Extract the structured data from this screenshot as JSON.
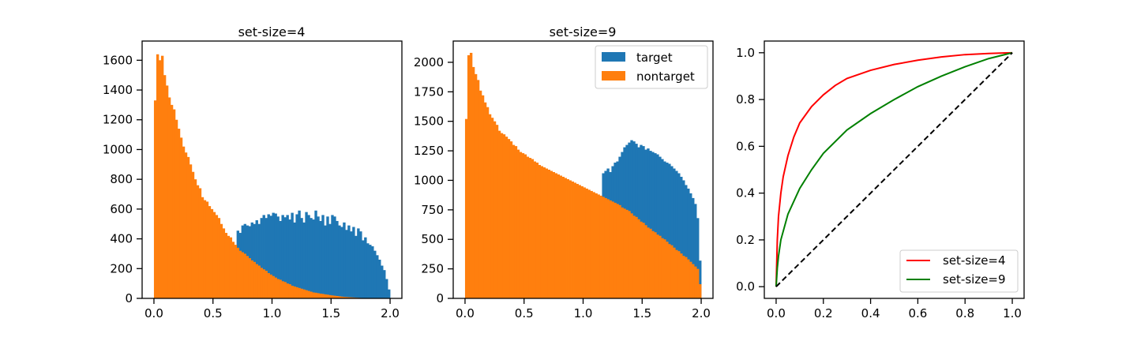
{
  "colors": {
    "target": "#1f77b4",
    "nontarget": "#ff7f0e",
    "roc_set4": "#ff0000",
    "roc_set9": "#008000",
    "diagonal": "#000000"
  },
  "chart_data": [
    {
      "type": "histogram",
      "title": "set-size=4",
      "xlabel": "",
      "ylabel": "",
      "xlim": [
        -0.1,
        2.1
      ],
      "ylim": [
        0,
        1729
      ],
      "xticks": [
        0.0,
        0.5,
        1.0,
        1.5,
        2.0
      ],
      "xticklabels": [
        "0.0",
        "0.5",
        "1.0",
        "1.5",
        "2.0"
      ],
      "yticks": [
        0,
        200,
        400,
        600,
        800,
        1000,
        1200,
        1400,
        1600
      ],
      "yticklabels": [
        "0",
        "200",
        "400",
        "600",
        "800",
        "1000",
        "1200",
        "1400",
        "1600"
      ],
      "bin_range": [
        0,
        2
      ],
      "bin_count": 100,
      "series": [
        {
          "name": "target",
          "color_key": "target",
          "values": [
            0,
            0,
            0,
            0,
            0,
            0,
            0,
            0,
            0,
            0,
            0,
            0,
            0,
            0,
            0,
            0,
            0,
            0,
            0,
            0,
            0,
            0,
            0,
            0,
            0,
            0,
            0,
            0,
            0,
            0,
            0,
            0,
            0,
            0,
            0,
            455,
            440,
            490,
            500,
            490,
            485,
            510,
            500,
            525,
            500,
            540,
            560,
            540,
            565,
            555,
            575,
            570,
            550,
            520,
            560,
            545,
            560,
            530,
            575,
            510,
            565,
            590,
            540,
            510,
            580,
            560,
            540,
            530,
            590,
            550,
            520,
            560,
            490,
            550,
            500,
            560,
            550,
            520,
            490,
            480,
            510,
            460,
            490,
            450,
            480,
            420,
            470,
            450,
            390,
            410,
            370,
            360,
            350,
            320,
            290,
            260,
            220,
            190,
            130,
            60
          ]
        },
        {
          "name": "nontarget",
          "color_key": "nontarget",
          "values": [
            1330,
            1640,
            1600,
            1630,
            1500,
            1430,
            1350,
            1300,
            1270,
            1200,
            1140,
            1080,
            1020,
            980,
            950,
            900,
            850,
            800,
            760,
            740,
            680,
            660,
            650,
            620,
            600,
            580,
            560,
            540,
            500,
            470,
            440,
            420,
            410,
            380,
            360,
            340,
            320,
            310,
            300,
            285,
            270,
            255,
            245,
            230,
            220,
            205,
            195,
            185,
            170,
            160,
            150,
            140,
            130,
            125,
            115,
            110,
            100,
            95,
            85,
            80,
            75,
            70,
            65,
            60,
            55,
            50,
            45,
            40,
            38,
            35,
            32,
            30,
            27,
            25,
            22,
            20,
            18,
            16,
            14,
            12,
            10,
            9,
            8,
            7,
            6,
            5,
            4,
            3,
            2,
            2,
            1,
            1,
            1,
            0,
            0,
            0,
            0,
            0,
            0,
            0
          ]
        }
      ]
    },
    {
      "type": "histogram",
      "title": "set-size=9",
      "xlabel": "",
      "ylabel": "",
      "xlim": [
        -0.1,
        2.1
      ],
      "ylim": [
        0,
        2180
      ],
      "xticks": [
        0.0,
        0.5,
        1.0,
        1.5,
        2.0
      ],
      "xticklabels": [
        "0.0",
        "0.5",
        "1.0",
        "1.5",
        "2.0"
      ],
      "yticks": [
        0,
        250,
        500,
        750,
        1000,
        1250,
        1500,
        1750,
        2000
      ],
      "yticklabels": [
        "0",
        "250",
        "500",
        "750",
        "1000",
        "1250",
        "1500",
        "1750",
        "2000"
      ],
      "bin_range": [
        0,
        2
      ],
      "bin_count": 100,
      "legend": {
        "placement": "upper right",
        "entries": [
          "target",
          "nontarget"
        ]
      },
      "series": [
        {
          "name": "target",
          "color_key": "target",
          "values": [
            0,
            0,
            0,
            0,
            0,
            0,
            0,
            0,
            0,
            0,
            0,
            0,
            0,
            0,
            0,
            0,
            0,
            0,
            0,
            0,
            0,
            0,
            0,
            0,
            0,
            0,
            0,
            0,
            0,
            0,
            0,
            0,
            0,
            0,
            0,
            0,
            0,
            0,
            0,
            0,
            0,
            0,
            0,
            0,
            0,
            0,
            0,
            0,
            0,
            0,
            0,
            0,
            0,
            0,
            0,
            0,
            0,
            0,
            1060,
            1080,
            1100,
            1070,
            1120,
            1150,
            1160,
            1200,
            1240,
            1280,
            1300,
            1320,
            1340,
            1330,
            1310,
            1280,
            1300,
            1290,
            1260,
            1270,
            1250,
            1240,
            1230,
            1220,
            1200,
            1180,
            1160,
            1150,
            1140,
            1120,
            1100,
            1080,
            1060,
            1030,
            1000,
            960,
            930,
            890,
            850,
            800,
            680,
            320
          ]
        },
        {
          "name": "nontarget",
          "color_key": "nontarget",
          "values": [
            1520,
            2060,
            2080,
            1960,
            1900,
            1850,
            1760,
            1720,
            1660,
            1620,
            1560,
            1530,
            1500,
            1470,
            1420,
            1400,
            1390,
            1370,
            1350,
            1330,
            1300,
            1290,
            1260,
            1240,
            1230,
            1220,
            1200,
            1190,
            1180,
            1160,
            1150,
            1130,
            1120,
            1110,
            1100,
            1090,
            1080,
            1070,
            1060,
            1050,
            1040,
            1030,
            1020,
            1010,
            1000,
            990,
            980,
            970,
            960,
            950,
            940,
            930,
            920,
            910,
            900,
            890,
            880,
            870,
            860,
            850,
            840,
            830,
            820,
            810,
            800,
            790,
            770,
            760,
            750,
            740,
            720,
            700,
            690,
            670,
            650,
            640,
            620,
            600,
            590,
            570,
            560,
            540,
            530,
            510,
            500,
            480,
            460,
            450,
            430,
            410,
            400,
            380,
            360,
            350,
            330,
            310,
            290,
            270,
            250,
            120
          ]
        }
      ]
    },
    {
      "type": "line",
      "title": "",
      "xlabel": "",
      "ylabel": "",
      "xlim": [
        -0.05,
        1.05
      ],
      "ylim": [
        -0.05,
        1.05
      ],
      "xticks": [
        0.0,
        0.2,
        0.4,
        0.6,
        0.8,
        1.0
      ],
      "xticklabels": [
        "0.0",
        "0.2",
        "0.4",
        "0.6",
        "0.8",
        "1.0"
      ],
      "yticks": [
        0.0,
        0.2,
        0.4,
        0.6,
        0.8,
        1.0
      ],
      "yticklabels": [
        "0.0",
        "0.2",
        "0.4",
        "0.6",
        "0.8",
        "1.0"
      ],
      "legend": {
        "placement": "lower right",
        "entries": [
          "set-size=4",
          "set-size=9"
        ]
      },
      "series": [
        {
          "name": "set-size=4",
          "color_key": "roc_set4",
          "style": "solid",
          "x": [
            0.0,
            0.005,
            0.01,
            0.02,
            0.03,
            0.05,
            0.075,
            0.1,
            0.15,
            0.2,
            0.25,
            0.3,
            0.4,
            0.5,
            0.6,
            0.7,
            0.8,
            0.9,
            1.0
          ],
          "y": [
            0.0,
            0.2,
            0.3,
            0.4,
            0.47,
            0.56,
            0.64,
            0.7,
            0.77,
            0.82,
            0.86,
            0.89,
            0.925,
            0.95,
            0.968,
            0.982,
            0.992,
            0.997,
            1.0
          ]
        },
        {
          "name": "set-size=9",
          "color_key": "roc_set9",
          "style": "solid",
          "x": [
            0.0,
            0.005,
            0.01,
            0.02,
            0.05,
            0.1,
            0.15,
            0.2,
            0.3,
            0.4,
            0.5,
            0.6,
            0.7,
            0.8,
            0.9,
            1.0
          ],
          "y": [
            0.0,
            0.08,
            0.13,
            0.2,
            0.31,
            0.42,
            0.5,
            0.57,
            0.67,
            0.74,
            0.8,
            0.855,
            0.9,
            0.94,
            0.975,
            1.0
          ]
        },
        {
          "name": "",
          "color_key": "diagonal",
          "style": "dashed",
          "x": [
            0.0,
            1.0
          ],
          "y": [
            0.0,
            1.0
          ]
        }
      ]
    }
  ]
}
